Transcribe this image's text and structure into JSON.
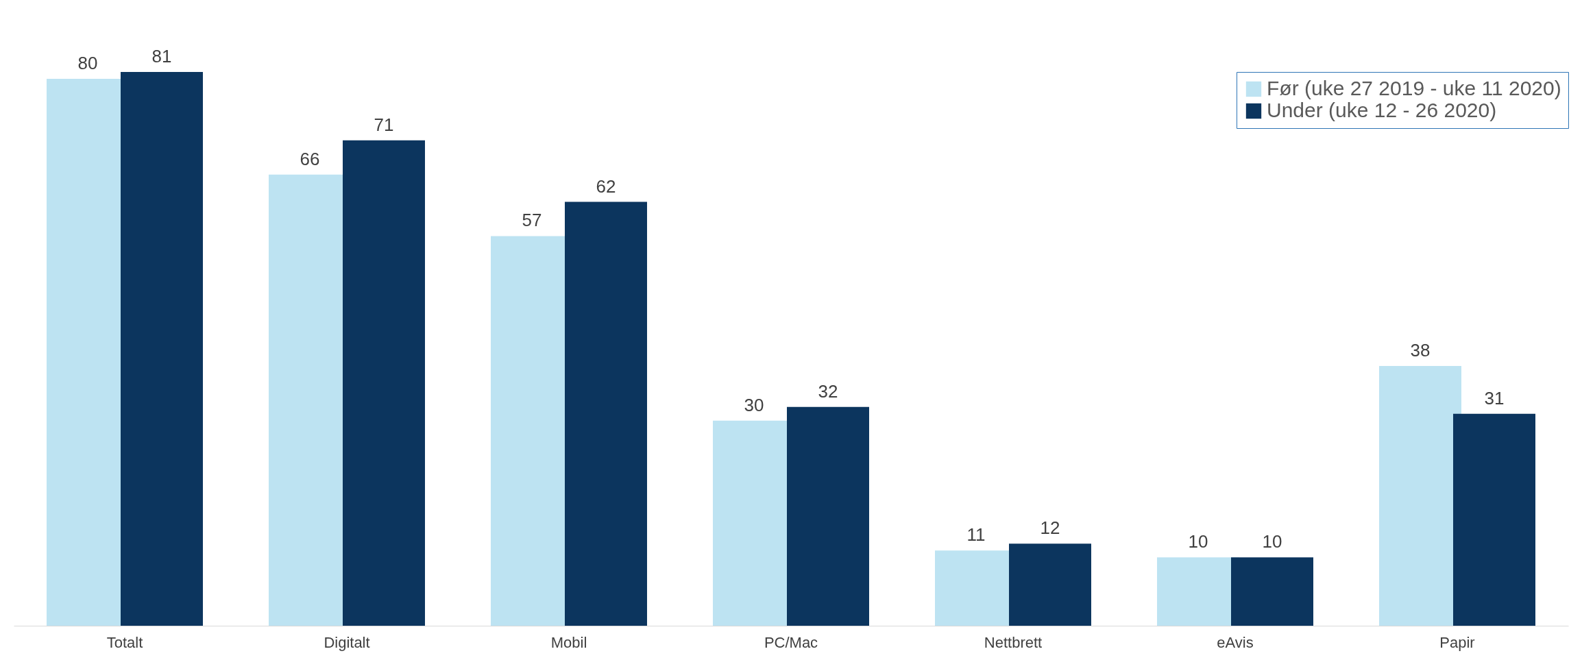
{
  "chart_data": {
    "type": "bar",
    "categories": [
      "Totalt",
      "Digitalt",
      "Mobil",
      "PC/Mac",
      "Nettbrett",
      "eAvis",
      "Papir"
    ],
    "series": [
      {
        "name": "Før (uke 27 2019 - uke 11 2020)",
        "color": "#bde3f2",
        "values": [
          80,
          66,
          57,
          30,
          11,
          10,
          38
        ]
      },
      {
        "name": "Under (uke 12 - 26 2020)",
        "color": "#0c355e",
        "values": [
          81,
          71,
          62,
          32,
          12,
          10,
          31
        ]
      }
    ],
    "data_labels": true,
    "legend": "top right",
    "grid": false,
    "tick_labels": "x"
  }
}
